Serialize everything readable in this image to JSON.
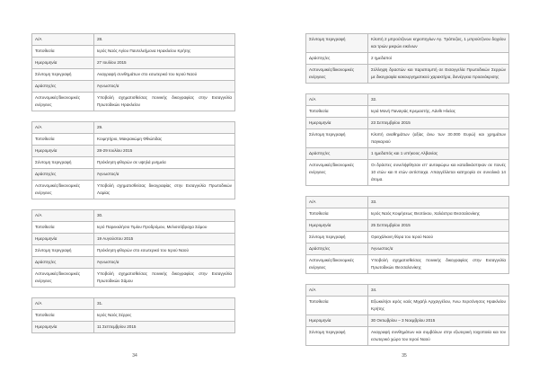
{
  "left_page": {
    "page_number": "34",
    "tables": [
      {
        "rows": [
          [
            "Α/Α",
            "28."
          ],
          [
            "Τοποθεσία",
            "Ιερός Ναός Αγίου Παντελεήμονα Ηρακλείου Κρήτης"
          ],
          [
            "Ημερομηνία",
            "27 Ιουλίου 2015"
          ],
          [
            "Σύντομη περιγραφή",
            "Αναγραφή συνθημάτων στο εσωτερικό του Ιερού Ναού"
          ],
          [
            "Δράστης/ες",
            "Άγνωστος/α"
          ],
          [
            "Αστυνομικές/δικονομικές ενέργειες",
            "Υποβολή σχηματισθείσας ποινικής δικογραφίας στην Εισαγγελία Πρωτοδικών Ηρακλείου"
          ]
        ]
      },
      {
        "rows": [
          [
            "Α/Α",
            "29."
          ],
          [
            "Τοποθεσία",
            "Κοιμητήριο, Μακρακώμη Φθιώτιδας"
          ],
          [
            "Ημερομηνία",
            "28-29 Ιουλίου 2015"
          ],
          [
            "Σύντομη περιγραφή",
            "Πρόκληση φθορών σε υψηλά μνημεία"
          ],
          [
            "Δράστης/ες",
            "Άγνωστος/α"
          ],
          [
            "Αστυνομικές/δικονομικές ενέργειες",
            "Υποβολή σχηματισθείσας δικογραφίας στην Εισαγγελία Πρωτοδικών Λαμίας"
          ]
        ]
      },
      {
        "rows": [
          [
            "Α/Α",
            "30."
          ],
          [
            "Τοποθεσία",
            "Ιερό Παρεκκλήσιο Τιμίου Προδρόμου, Μελισσόβραχα Σάμου"
          ],
          [
            "Ημερομηνία",
            "19 Αυγούστου 2015"
          ],
          [
            "Σύντομη περιγραφή",
            "Πρόκληση φθορών στο εσωτερικό του Ιερού Ναού"
          ],
          [
            "Δράστης/ες",
            "Άγνωστος/α"
          ],
          [
            "Αστυνομικές/δικονομικές ενέργειες",
            "Υποβολή σχηματισθείσας ποινικής δικογραφίας στην Εισαγγελία Πρωτοδικών Σάμου"
          ]
        ]
      },
      {
        "rows": [
          [
            "Α/Α",
            "31."
          ],
          [
            "Τοποθεσία",
            "Ιερός Ναός Σέρρες"
          ],
          [
            "Ημερομηνία",
            "11 Σεπτεμβρίου 2015"
          ]
        ]
      }
    ]
  },
  "right_page": {
    "page_number": "35",
    "tables": [
      {
        "rows": [
          [
            "Σύντομη περιγραφή",
            "Κλοπή 2 μπρούτζινων κηροπηγίων Αγ. Τράπεζας, 1 μπρούτζινου δοχείου και τριών μικρών εικόνων"
          ],
          [
            "Δράστης/ες",
            "2 ημεδαποί"
          ],
          [
            "Αστυνομικές/δικονομικές ενέργειες",
            "Σύλληψη δραστών και παραπομπή σε Εισαγγελία Πρωτοδικών Σερρών με δικογραφία κακουργηματικού χαρακτήρα, διενέργεια προανάκρισης"
          ]
        ]
      },
      {
        "rows": [
          [
            "Α/Α",
            "32."
          ],
          [
            "Τοποθεσία",
            "Ιερά Μονή Παναγιάς Κρεμαστής, Λάνθι Ηλείας"
          ],
          [
            "Ημερομηνία",
            "23 Σεπτεμβρίου 2015"
          ],
          [
            "Σύντομη περιγραφή",
            "Κλοπή αναθημάτων (αξίας άνω των 30.000 Ευρώ) και χρημάτων παγκαριού"
          ],
          [
            "Δράστης/ες",
            "1 ημεδαπός και 1 υπήκοος Αλβανίας"
          ],
          [
            "Αστυνομικές/δικονομικές ενέργειες",
            "Οι δράστες συνελήφθησαν επ' αυτοφώρω και καταδικάστηκαν σε ποινές 10 ετών και 8 ετών αντίστοιχα. Απαγγέλλεται κατηγορία σε συνολικά 14 άτομα."
          ]
        ]
      },
      {
        "rows": [
          [
            "Α/Α",
            "33."
          ],
          [
            "Τοποθεσία",
            "Ιερός Ναός Κοιμήσεως Θεοτόκου, Χαλάστρα Θεσσαλονίκης"
          ],
          [
            "Ημερομηνία",
            "25 Σεπτεμβρίου 2015"
          ],
          [
            "Σύντομη περιγραφή",
            "Ορειχάλκινη θύρα του Ιερού Ναού"
          ],
          [
            "Δράστης/ες",
            "Άγνωστος/α"
          ],
          [
            "Αστυνομικές/δικονομικές ενέργειες",
            "Υποβολή σχηματισθείσας ποινικής δικογραφίας στην Εισαγγελία Πρωτοδικών Θεσσαλονίκης"
          ]
        ]
      },
      {
        "rows": [
          [
            "Α/Α",
            "34."
          ],
          [
            "Τοποθεσία",
            "Εξωκκλήσι ιερός ναός Μιχαήλ Αρχαγγέλου, Άνω Χερσόνησος Ηρακλείου Κρήτης"
          ],
          [
            "Ημερομηνία",
            "30 Οκτωβρίου – 3 Νοεμβρίου 2015"
          ],
          [
            "Σύντομη περιγραφή",
            "Αναγραφή συνθημάτων και συμβόλων στην εξωτερική τοιχοποιία και τον εσωτερικό χώρο του Ιερού Ναού"
          ]
        ]
      }
    ]
  }
}
